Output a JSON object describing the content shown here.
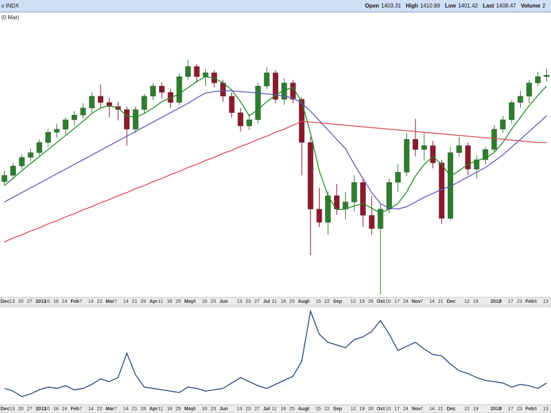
{
  "header": {
    "symbol": "x INDX",
    "quote": [
      {
        "label": "Open",
        "value": 1403.31
      },
      {
        "label": "High",
        "value": 1410.89
      },
      {
        "label": "Low",
        "value": 1401.42
      },
      {
        "label": "Last",
        "value": 1408.47
      },
      {
        "label": "Volume",
        "value": "2"
      }
    ]
  },
  "chart_data": [
    {
      "type": "candlestick",
      "subtitle": "(0 Mar)",
      "categories": [
        "Dec",
        "13",
        "20",
        "27",
        "2011",
        "10",
        "18",
        "24",
        "Feb",
        "7",
        "14",
        "22",
        "Mar",
        "7",
        "14",
        "21",
        "28",
        "Apr",
        "11",
        "18",
        "25",
        "May",
        "9",
        "16",
        "23",
        "Jun",
        null,
        "13",
        "20",
        "27",
        "Jul",
        "11",
        "18",
        "25",
        "Aug",
        "8",
        "15",
        "22",
        "Sep",
        null,
        "12",
        "19",
        "26",
        "Oct",
        "10",
        "17",
        "24",
        "Nov",
        "7",
        "14",
        "21",
        "Dec",
        null,
        "12",
        "19",
        null,
        "2012",
        "9",
        "17",
        "23",
        "Feb",
        "6",
        "13"
      ],
      "open": [
        1218,
        1226,
        1238,
        1249,
        1255,
        1268,
        1281,
        1285,
        1297,
        1303,
        1312,
        1327,
        1319,
        1314,
        1310,
        1285,
        1310,
        1327,
        1340,
        1332,
        1319,
        1352,
        1365,
        1352,
        1357,
        1344,
        1327,
        1306,
        1289,
        1297,
        1340,
        1357,
        1323,
        1344,
        1323,
        1268,
        1183,
        1166,
        1200,
        1183,
        1192,
        1217,
        1175,
        1158,
        1183,
        1217,
        1230,
        1272,
        1259,
        1264,
        1242,
        1171,
        1255,
        1264,
        1234,
        1246,
        1259,
        1285,
        1297,
        1319,
        1327,
        1344,
        1352
      ],
      "high": [
        1232,
        1242,
        1253,
        1260,
        1272,
        1285,
        1292,
        1300,
        1308,
        1318,
        1332,
        1342,
        1325,
        1320,
        1314,
        1314,
        1330,
        1344,
        1345,
        1336,
        1356,
        1374,
        1368,
        1362,
        1360,
        1348,
        1332,
        1312,
        1304,
        1344,
        1364,
        1360,
        1350,
        1348,
        1326,
        1275,
        1210,
        1206,
        1215,
        1205,
        1226,
        1222,
        1200,
        1190,
        1222,
        1240,
        1280,
        1298,
        1280,
        1270,
        1246,
        1262,
        1275,
        1268,
        1252,
        1262,
        1290,
        1302,
        1322,
        1334,
        1348,
        1358,
        1362
      ],
      "low": [
        1214,
        1222,
        1234,
        1244,
        1250,
        1262,
        1274,
        1278,
        1290,
        1298,
        1306,
        1312,
        1300,
        1296,
        1264,
        1280,
        1305,
        1322,
        1324,
        1312,
        1316,
        1348,
        1344,
        1340,
        1338,
        1320,
        1300,
        1282,
        1284,
        1292,
        1336,
        1318,
        1316,
        1318,
        1226,
        1124,
        1160,
        1150,
        1176,
        1170,
        1180,
        1160,
        1150,
        1074,
        1178,
        1205,
        1225,
        1250,
        1245,
        1235,
        1164,
        1168,
        1250,
        1226,
        1222,
        1240,
        1255,
        1280,
        1292,
        1312,
        1318,
        1340,
        1346
      ],
      "close": [
        1226,
        1238,
        1249,
        1255,
        1268,
        1281,
        1285,
        1297,
        1303,
        1312,
        1327,
        1319,
        1314,
        1310,
        1285,
        1310,
        1327,
        1340,
        1332,
        1319,
        1352,
        1365,
        1352,
        1357,
        1344,
        1327,
        1306,
        1289,
        1297,
        1340,
        1357,
        1323,
        1344,
        1323,
        1268,
        1183,
        1166,
        1200,
        1183,
        1192,
        1217,
        1175,
        1158,
        1183,
        1217,
        1230,
        1272,
        1259,
        1264,
        1242,
        1171,
        1255,
        1264,
        1234,
        1246,
        1259,
        1285,
        1297,
        1319,
        1327,
        1344,
        1352,
        1354
      ],
      "up_color": "#2e7d2e",
      "down_color": "#8b1a2c",
      "series": [
        {
          "color": "#1f8a1f",
          "values": [
            1213,
            1222,
            1232,
            1241,
            1250,
            1259,
            1268,
            1277,
            1286,
            1295,
            1305,
            1312,
            1315,
            1312,
            1302,
            1300,
            1305,
            1312,
            1320,
            1325,
            1330,
            1338,
            1346,
            1352,
            1350,
            1344,
            1335,
            1320,
            1302,
            1310,
            1320,
            1328,
            1335,
            1338,
            1320,
            1280,
            1232,
            1200,
            1182,
            1183,
            1187,
            1190,
            1184,
            1178,
            1183,
            1190,
            1205,
            1225,
            1240,
            1250,
            1240,
            1225,
            1232,
            1240,
            1245,
            1248,
            1255,
            1268,
            1285,
            1300,
            1315,
            1328,
            1340
          ]
        },
        {
          "color": "#5656b8",
          "values": [
            1192,
            1198,
            1204,
            1210,
            1216,
            1222,
            1228,
            1234,
            1240,
            1246,
            1252,
            1258,
            1264,
            1270,
            1276,
            1282,
            1288,
            1294,
            1300,
            1306,
            1312,
            1318,
            1325,
            1331,
            1333,
            1334,
            1334,
            1333,
            1332,
            1331,
            1330,
            1329,
            1327,
            1325,
            1318,
            1308,
            1296,
            1284,
            1272,
            1260,
            1240,
            1222,
            1204,
            1190,
            1184,
            1183,
            1186,
            1192,
            1198,
            1203,
            1208,
            1212,
            1218,
            1224,
            1230,
            1236,
            1244,
            1252,
            1262,
            1272,
            1282,
            1292,
            1302
          ]
        },
        {
          "color": "#d9434f",
          "values": [
            1141,
            1146,
            1150,
            1155,
            1159,
            1164,
            1168,
            1173,
            1177,
            1182,
            1186,
            1191,
            1195,
            1200,
            1204,
            1209,
            1213,
            1218,
            1222,
            1227,
            1231,
            1236,
            1240,
            1245,
            1249,
            1254,
            1258,
            1263,
            1267,
            1272,
            1276,
            1281,
            1285,
            1290,
            1295,
            1294,
            1293,
            1292,
            1291,
            1290,
            1289,
            1288,
            1287,
            1286,
            1285,
            1284,
            1283,
            1282,
            1281,
            1280,
            1279,
            1278,
            1277,
            1276,
            1275,
            1274,
            1273,
            1272,
            1271,
            1270,
            1269,
            1268,
            1268
          ]
        }
      ],
      "ylim": [
        1072,
        1420
      ]
    },
    {
      "type": "line",
      "categories": [
        "Dec",
        "13",
        "20",
        "27",
        "2011",
        "10",
        "18",
        "24",
        "Feb",
        "7",
        "14",
        "22",
        "Mar",
        "7",
        "14",
        "21",
        "28",
        "Apr",
        "11",
        "18",
        "25",
        "May",
        "9",
        "16",
        "23",
        "Jun",
        null,
        "13",
        "20",
        "27",
        "Jul",
        "11",
        "18",
        "25",
        "Aug",
        "8",
        "15",
        "22",
        "Sep",
        null,
        "12",
        "19",
        "26",
        "Oct",
        "10",
        "17",
        "24",
        "Nov",
        "7",
        "14",
        "21",
        "Dec",
        null,
        "12",
        "19",
        null,
        "2012",
        "9",
        "17",
        "23",
        "Feb",
        "6",
        "13"
      ],
      "series": [
        {
          "color": "#1f3f73",
          "values": [
            3.6,
            3.4,
            3.0,
            3.2,
            3.5,
            3.7,
            3.6,
            3.8,
            3.5,
            3.6,
            3.9,
            4.3,
            4.1,
            4.4,
            6.2,
            4.6,
            3.7,
            3.6,
            3.5,
            3.4,
            3.3,
            3.7,
            3.6,
            3.4,
            3.5,
            3.6,
            4.0,
            4.4,
            4.1,
            3.8,
            3.6,
            3.9,
            4.2,
            4.5,
            5.6,
            9.3,
            7.6,
            7.0,
            6.8,
            6.6,
            7.2,
            7.4,
            7.8,
            8.6,
            7.6,
            6.4,
            6.7,
            7.0,
            6.5,
            6.1,
            6.0,
            5.4,
            4.9,
            4.7,
            4.4,
            4.2,
            4.1,
            4.0,
            3.7,
            3.9,
            3.8,
            3.6,
            4.0
          ]
        }
      ],
      "ylim": [
        2.5,
        9.5
      ]
    }
  ]
}
